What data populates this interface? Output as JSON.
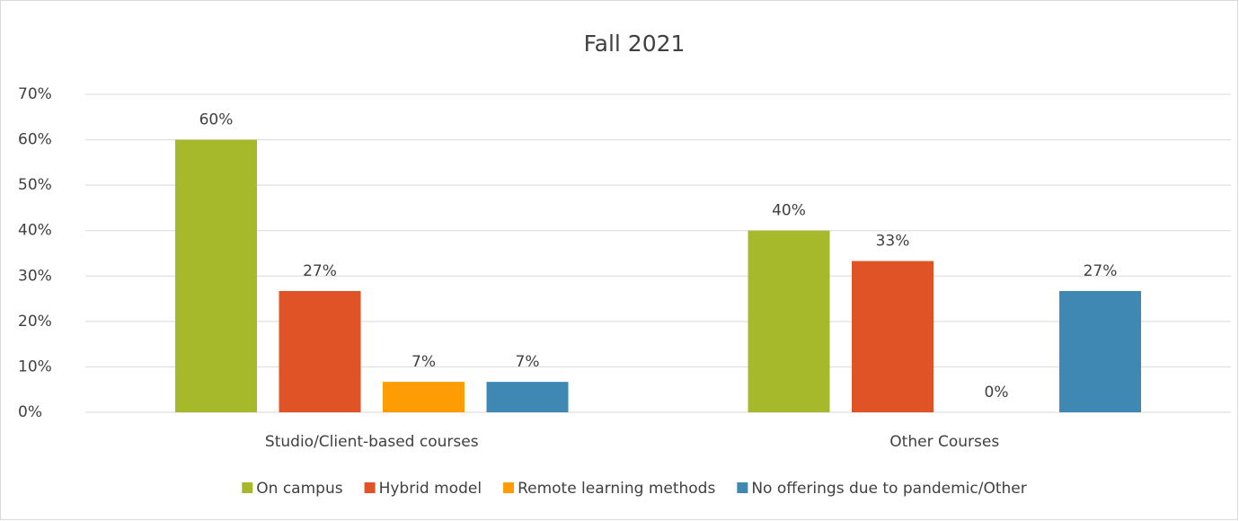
{
  "chart_data": {
    "type": "bar",
    "title": "Fall 2021",
    "categories": [
      "Studio/Client-based courses",
      "Other Courses"
    ],
    "series": [
      {
        "name": "On campus",
        "color": "#a5b92a",
        "values": [
          60,
          40
        ],
        "value_labels": [
          "60%",
          "40%"
        ]
      },
      {
        "name": "Hybrid model",
        "color": "#e05326",
        "values": [
          26.7,
          33.3
        ],
        "value_labels": [
          "27%",
          "33%"
        ]
      },
      {
        "name": "Remote learning methods",
        "color": "#fd9c04",
        "values": [
          6.7,
          0
        ],
        "value_labels": [
          "7%",
          "0%"
        ]
      },
      {
        "name": "No offerings due to pandemic/Other",
        "color": "#3e88b3",
        "values": [
          6.7,
          26.7
        ],
        "value_labels": [
          "7%",
          "27%"
        ]
      }
    ],
    "ylim": [
      0,
      70
    ],
    "yticks": [
      {
        "value": 0,
        "label": "0%"
      },
      {
        "value": 10,
        "label": "10%"
      },
      {
        "value": 20,
        "label": "20%"
      },
      {
        "value": 30,
        "label": "30%"
      },
      {
        "value": 40,
        "label": "40%"
      },
      {
        "value": 50,
        "label": "50%"
      },
      {
        "value": 60,
        "label": "60%"
      },
      {
        "value": 70,
        "label": "70%"
      }
    ],
    "grid": true,
    "legend": "bottom"
  }
}
